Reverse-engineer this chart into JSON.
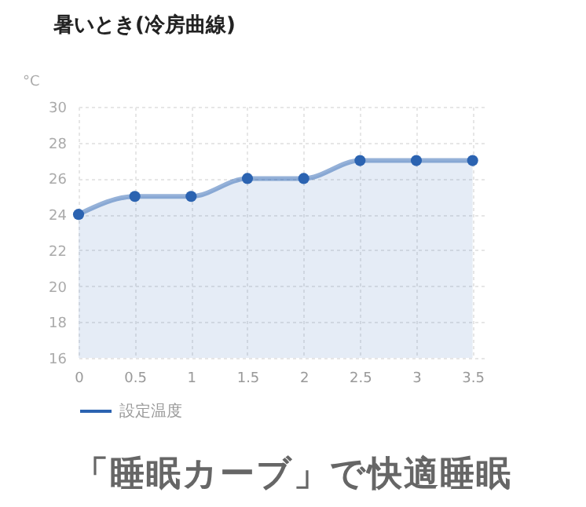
{
  "chart_data": {
    "type": "area",
    "title": "暑いとき(冷房曲線)",
    "ylabel": "°C",
    "x": [
      0,
      0.5,
      1,
      1.5,
      2,
      2.5,
      3,
      3.5
    ],
    "series": [
      {
        "name": "設定温度",
        "color": "#2b63b1",
        "values": [
          24,
          25,
          25,
          26,
          26,
          27,
          27,
          27
        ]
      }
    ],
    "xlim": [
      0,
      3.6
    ],
    "xticks": [
      0,
      0.5,
      1,
      1.5,
      2,
      2.5,
      3,
      3.5
    ],
    "ylim": [
      16,
      30
    ],
    "yticks": [
      16,
      18,
      20,
      22,
      24,
      26,
      28,
      30
    ],
    "grid": true,
    "legend": "bottom",
    "marker": "circle",
    "line_style": "solid",
    "annotations": [
      "「睡眠カーブ」で快適睡眠"
    ]
  }
}
